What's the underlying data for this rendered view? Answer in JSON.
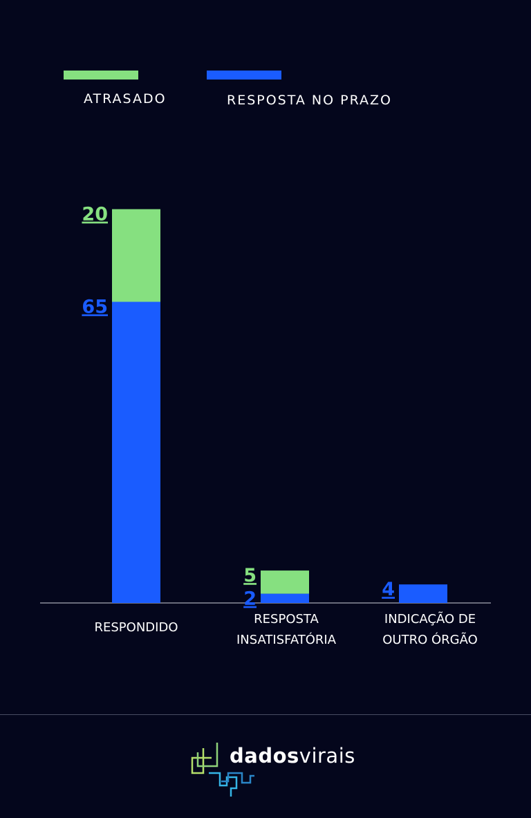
{
  "chart_data": {
    "type": "bar",
    "stacked": true,
    "categories": [
      "RESPONDIDO",
      "RESPOSTA INSATISFATÓRIA",
      "INDICAÇÃO DE OUTRO ÓRGÃO"
    ],
    "category_lines": [
      [
        "RESPONDIDO"
      ],
      [
        "RESPOSTA",
        "INSATISFATÓRIA"
      ],
      [
        "INDICAÇÃO DE",
        "OUTRO ÓRGÃO"
      ]
    ],
    "series": [
      {
        "name": "RESPOSTA NO PRAZO",
        "values": [
          65,
          2,
          4
        ],
        "labels": [
          "65",
          "2",
          "4"
        ],
        "color": "#1a5cff"
      },
      {
        "name": "ATRASADO",
        "values": [
          20,
          5,
          0
        ],
        "labels": [
          "20",
          "5",
          ""
        ],
        "color": "#86e080"
      }
    ],
    "legend_order": [
      "ATRASADO",
      "RESPOSTA NO PRAZO"
    ],
    "legend_position": "top-left",
    "grid": false,
    "y_axis_visible": false
  },
  "brand": {
    "bold": "dados",
    "light": "virais"
  },
  "colors": {
    "background": "#04061c",
    "axis": "#cfd1dc",
    "logo_green": "#b5e06a",
    "logo_blue": "#35b4e6"
  }
}
